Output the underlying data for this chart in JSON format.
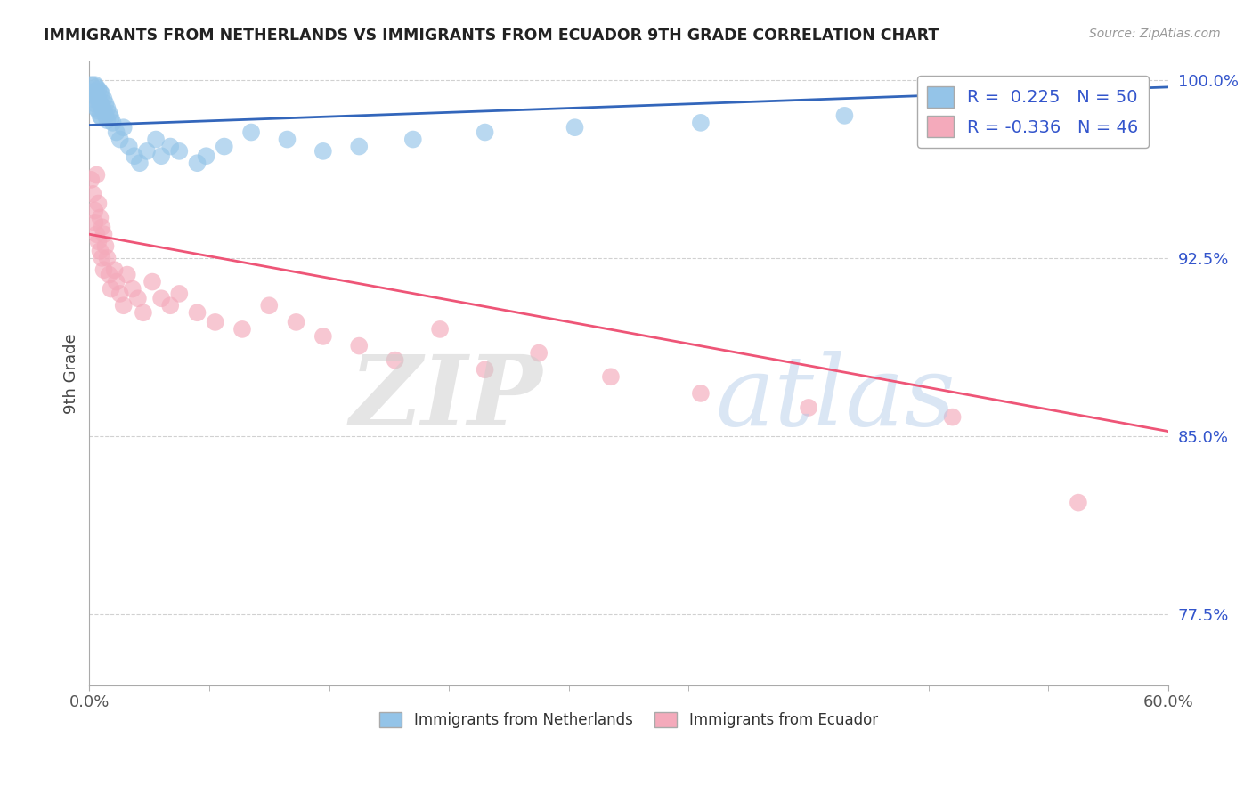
{
  "title": "IMMIGRANTS FROM NETHERLANDS VS IMMIGRANTS FROM ECUADOR 9TH GRADE CORRELATION CHART",
  "source": "Source: ZipAtlas.com",
  "ylabel": "9th Grade",
  "xlim": [
    0.0,
    0.6
  ],
  "ylim": [
    0.745,
    1.008
  ],
  "yticks": [
    0.775,
    0.85,
    0.925,
    1.0
  ],
  "ytick_labels": [
    "77.5%",
    "85.0%",
    "92.5%",
    "100.0%"
  ],
  "xtick_labels": [
    "0.0%",
    "60.0%"
  ],
  "blue_label": "Immigrants from Netherlands",
  "pink_label": "Immigrants from Ecuador",
  "blue_r": 0.225,
  "blue_n": 50,
  "pink_r": -0.336,
  "pink_n": 46,
  "blue_color": "#94c4e8",
  "pink_color": "#f4aabb",
  "blue_line_color": "#3366bb",
  "pink_line_color": "#ee5577",
  "legend_text_color": "#3355cc",
  "background_color": "#ffffff",
  "blue_x": [
    0.001,
    0.002,
    0.002,
    0.003,
    0.003,
    0.003,
    0.004,
    0.004,
    0.004,
    0.005,
    0.005,
    0.005,
    0.006,
    0.006,
    0.006,
    0.007,
    0.007,
    0.007,
    0.008,
    0.008,
    0.009,
    0.009,
    0.01,
    0.01,
    0.011,
    0.012,
    0.013,
    0.015,
    0.017,
    0.019,
    0.022,
    0.025,
    0.028,
    0.032,
    0.037,
    0.04,
    0.045,
    0.05,
    0.06,
    0.065,
    0.075,
    0.09,
    0.11,
    0.13,
    0.15,
    0.18,
    0.22,
    0.27,
    0.34,
    0.42
  ],
  "blue_y": [
    0.998,
    0.995,
    0.992,
    0.998,
    0.995,
    0.99,
    0.997,
    0.993,
    0.988,
    0.996,
    0.992,
    0.987,
    0.995,
    0.99,
    0.985,
    0.994,
    0.989,
    0.984,
    0.992,
    0.987,
    0.99,
    0.985,
    0.988,
    0.983,
    0.986,
    0.984,
    0.982,
    0.978,
    0.975,
    0.98,
    0.972,
    0.968,
    0.965,
    0.97,
    0.975,
    0.968,
    0.972,
    0.97,
    0.965,
    0.968,
    0.972,
    0.978,
    0.975,
    0.97,
    0.972,
    0.975,
    0.978,
    0.98,
    0.982,
    0.985
  ],
  "pink_x": [
    0.001,
    0.002,
    0.003,
    0.003,
    0.004,
    0.004,
    0.005,
    0.005,
    0.006,
    0.006,
    0.007,
    0.007,
    0.008,
    0.008,
    0.009,
    0.01,
    0.011,
    0.012,
    0.014,
    0.015,
    0.017,
    0.019,
    0.021,
    0.024,
    0.027,
    0.03,
    0.035,
    0.04,
    0.045,
    0.05,
    0.06,
    0.07,
    0.085,
    0.1,
    0.115,
    0.13,
    0.15,
    0.17,
    0.195,
    0.22,
    0.25,
    0.29,
    0.34,
    0.4,
    0.48,
    0.55
  ],
  "pink_y": [
    0.958,
    0.952,
    0.945,
    0.94,
    0.96,
    0.935,
    0.948,
    0.932,
    0.942,
    0.928,
    0.938,
    0.925,
    0.935,
    0.92,
    0.93,
    0.925,
    0.918,
    0.912,
    0.92,
    0.915,
    0.91,
    0.905,
    0.918,
    0.912,
    0.908,
    0.902,
    0.915,
    0.908,
    0.905,
    0.91,
    0.902,
    0.898,
    0.895,
    0.905,
    0.898,
    0.892,
    0.888,
    0.882,
    0.895,
    0.878,
    0.885,
    0.875,
    0.868,
    0.862,
    0.858,
    0.822
  ],
  "blue_trendline_x": [
    0.0,
    0.6
  ],
  "blue_trendline_y": [
    0.981,
    0.997
  ],
  "pink_trendline_x": [
    0.0,
    0.6
  ],
  "pink_trendline_y": [
    0.935,
    0.852
  ]
}
